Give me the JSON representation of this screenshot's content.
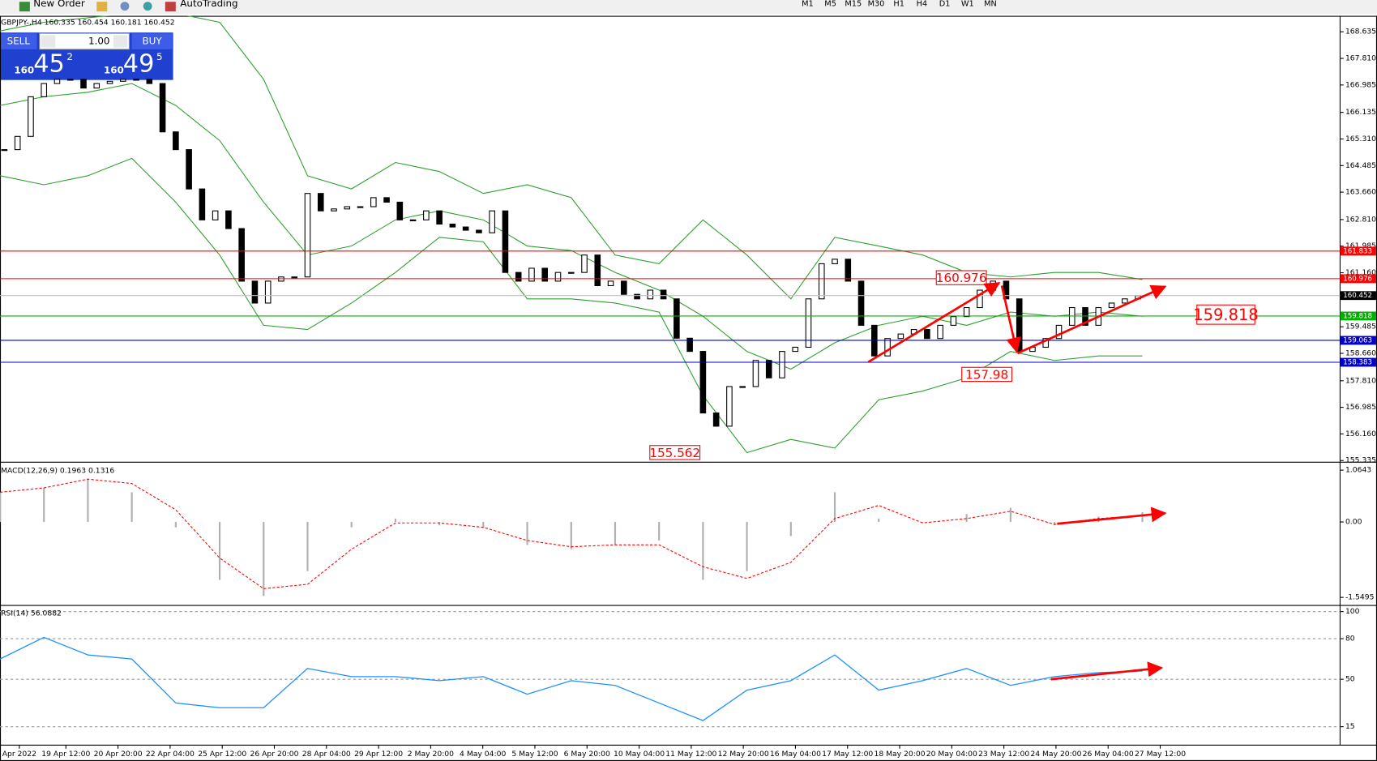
{
  "toolbar": {
    "new_order": "New Order",
    "autotrading": "AutoTrading",
    "timeframes": [
      "M1",
      "M5",
      "M15",
      "M30",
      "H1",
      "H4",
      "D1",
      "W1",
      "MN"
    ]
  },
  "one_click": {
    "sell": "SELL",
    "lot": "1.00",
    "buy": "BUY",
    "bid": {
      "big": "160",
      "mid": "45",
      "small": "2"
    },
    "ask": {
      "big": "160",
      "mid": "49",
      "small": "5"
    }
  },
  "time_axis": [
    "Apr 2022",
    "19 Apr 12:00",
    "20 Apr 20:00",
    "22 Apr 04:00",
    "25 Apr 12:00",
    "26 Apr 20:00",
    "28 Apr 04:00",
    "29 Apr 12:00",
    "2 May 20:00",
    "4 May 04:00",
    "5 May 12:00",
    "6 May 20:00",
    "10 May 04:00",
    "11 May 12:00",
    "12 May 20:00",
    "16 May 04:00",
    "17 May 12:00",
    "18 May 20:00",
    "20 May 04:00",
    "23 May 12:00",
    "24 May 20:00",
    "26 May 04:00",
    "27 May 12:00"
  ],
  "chart_data": [
    {
      "type": "candlestick",
      "title": "GBPJPY-,H4 160.335 160.454 160.181 160.452",
      "up_color": "#ffffff",
      "down_color": "#000000",
      "values": [
        164.98,
        165.39,
        166.62,
        167.03,
        167.16,
        167.16,
        166.89,
        167.03,
        167.1,
        167.16,
        167.16,
        167.03,
        165.53,
        164.98,
        163.76,
        162.8,
        163.08,
        162.53,
        160.9,
        160.22,
        160.9,
        161.03,
        161.03,
        163.62,
        163.08,
        163.14,
        163.21,
        163.21,
        163.49,
        163.35,
        162.8,
        162.8,
        163.08,
        162.67,
        162.58,
        162.48,
        162.4,
        163.08,
        161.17,
        160.9,
        161.3,
        160.9,
        161.17,
        161.17,
        161.71,
        160.76,
        160.9,
        160.49,
        160.35,
        160.62,
        160.35,
        159.13,
        158.72,
        156.81,
        156.4,
        157.63,
        157.63,
        158.44,
        157.9,
        158.72,
        158.85,
        160.35,
        161.44,
        161.58,
        160.9,
        159.53,
        158.58,
        159.12,
        159.26,
        159.4,
        159.12,
        159.53,
        159.8,
        160.08,
        160.62,
        160.9,
        160.35,
        158.72,
        158.85,
        159.12,
        159.53,
        160.08,
        159.53,
        160.08,
        160.22,
        160.35,
        160.45
      ],
      "bands": {
        "color": "#2ca02c",
        "upper": [
          168.66,
          168.93,
          169.07,
          169.21,
          169.21,
          168.93,
          167.16,
          164.17,
          163.76,
          164.58,
          164.3,
          163.62,
          163.89,
          163.49,
          161.71,
          161.44,
          162.8,
          161.71,
          160.35,
          162.26,
          161.99,
          161.71,
          161.17,
          161.03,
          161.17,
          161.17,
          160.95
        ],
        "middle": [
          166.35,
          166.62,
          166.76,
          167.03,
          166.35,
          165.26,
          163.35,
          161.71,
          161.99,
          162.8,
          163.08,
          162.8,
          161.99,
          161.85,
          161.17,
          160.62,
          159.81,
          158.72,
          158.17,
          158.99,
          159.53,
          159.81,
          159.53,
          159.94,
          159.81,
          159.94,
          159.81
        ],
        "lower": [
          164.17,
          163.89,
          164.17,
          164.71,
          163.35,
          161.71,
          159.53,
          159.4,
          160.22,
          161.17,
          162.26,
          162.12,
          160.35,
          160.35,
          160.22,
          159.94,
          157.35,
          155.58,
          155.99,
          155.72,
          157.22,
          157.49,
          157.9,
          158.72,
          158.44,
          158.58,
          158.58
        ]
      },
      "levels": [
        {
          "value": 161.833,
          "color": "#ff0000"
        },
        {
          "value": 160.976,
          "color": "#ff0000"
        },
        {
          "value": 160.452,
          "color": "#000000"
        },
        {
          "value": 159.818,
          "color": "#00b000"
        },
        {
          "value": 159.063,
          "color": "#0000c8"
        },
        {
          "value": 158.383,
          "color": "#0000c8"
        }
      ],
      "annotations": [
        160.976,
        157.98,
        155.562,
        159.818
      ],
      "ylim": [
        155.31,
        169.13
      ],
      "yticks": [
        168.635,
        {
          "value": 167.81,
          "label": "167.810"
        },
        166.985,
        166.135,
        {
          "value": 165.31,
          "label": "165.310"
        },
        164.485,
        {
          "value": 163.66,
          "label": "163.660"
        },
        {
          "value": 162.81,
          "label": "162.810"
        },
        161.985,
        {
          "value": 161.16,
          "label": "161.160"
        },
        159.485,
        {
          "value": 158.66,
          "label": "158.660"
        },
        {
          "value": 157.81,
          "label": "157.810"
        },
        156.985,
        {
          "value": 156.16,
          "label": "156.160"
        },
        155.335
      ]
    },
    {
      "type": "macd",
      "title": "MACD(12,26,9) 0.1963 0.1316",
      "histogram_color": "#b0b0b0",
      "signal_color": "#ff0000",
      "macd": [
        0.61,
        0.7,
        0.88,
        0.61,
        -0.11,
        -1.19,
        -1.52,
        -1.01,
        -0.11,
        0.07,
        -0.07,
        -0.11,
        -0.47,
        -0.56,
        -0.47,
        -0.38,
        -1.19,
        -1.01,
        -0.29,
        0.61,
        0.07,
        -0.02,
        0.16,
        0.29,
        -0.07,
        0.11,
        0.2
      ],
      "signal": [
        0.61,
        0.7,
        0.88,
        0.79,
        0.25,
        -0.74,
        -1.37,
        -1.28,
        -0.56,
        -0.02,
        -0.02,
        -0.11,
        -0.38,
        -0.51,
        -0.47,
        -0.47,
        -0.92,
        -1.16,
        -0.83,
        0.07,
        0.34,
        -0.02,
        0.07,
        0.22,
        -0.05,
        0.07,
        0.13
      ],
      "ylim": [
        -1.697,
        1.191
      ],
      "yticks": [
        1.0643,
        {
          "value": 0,
          "label": "0.00"
        },
        -1.5495
      ]
    },
    {
      "type": "rsi",
      "title": "RSI(14) 56.0882",
      "color": "#1e90ff",
      "values": [
        65,
        81,
        68,
        65,
        32.5,
        29,
        29,
        58,
        52,
        52,
        49,
        52,
        39,
        49,
        45.5,
        32.5,
        19.5,
        42,
        49,
        68,
        42,
        49,
        58,
        45.5,
        52,
        55,
        56.1
      ],
      "ylim": [
        3.3,
        103.9
      ],
      "yticks": [
        100,
        80,
        50,
        15
      ]
    }
  ]
}
